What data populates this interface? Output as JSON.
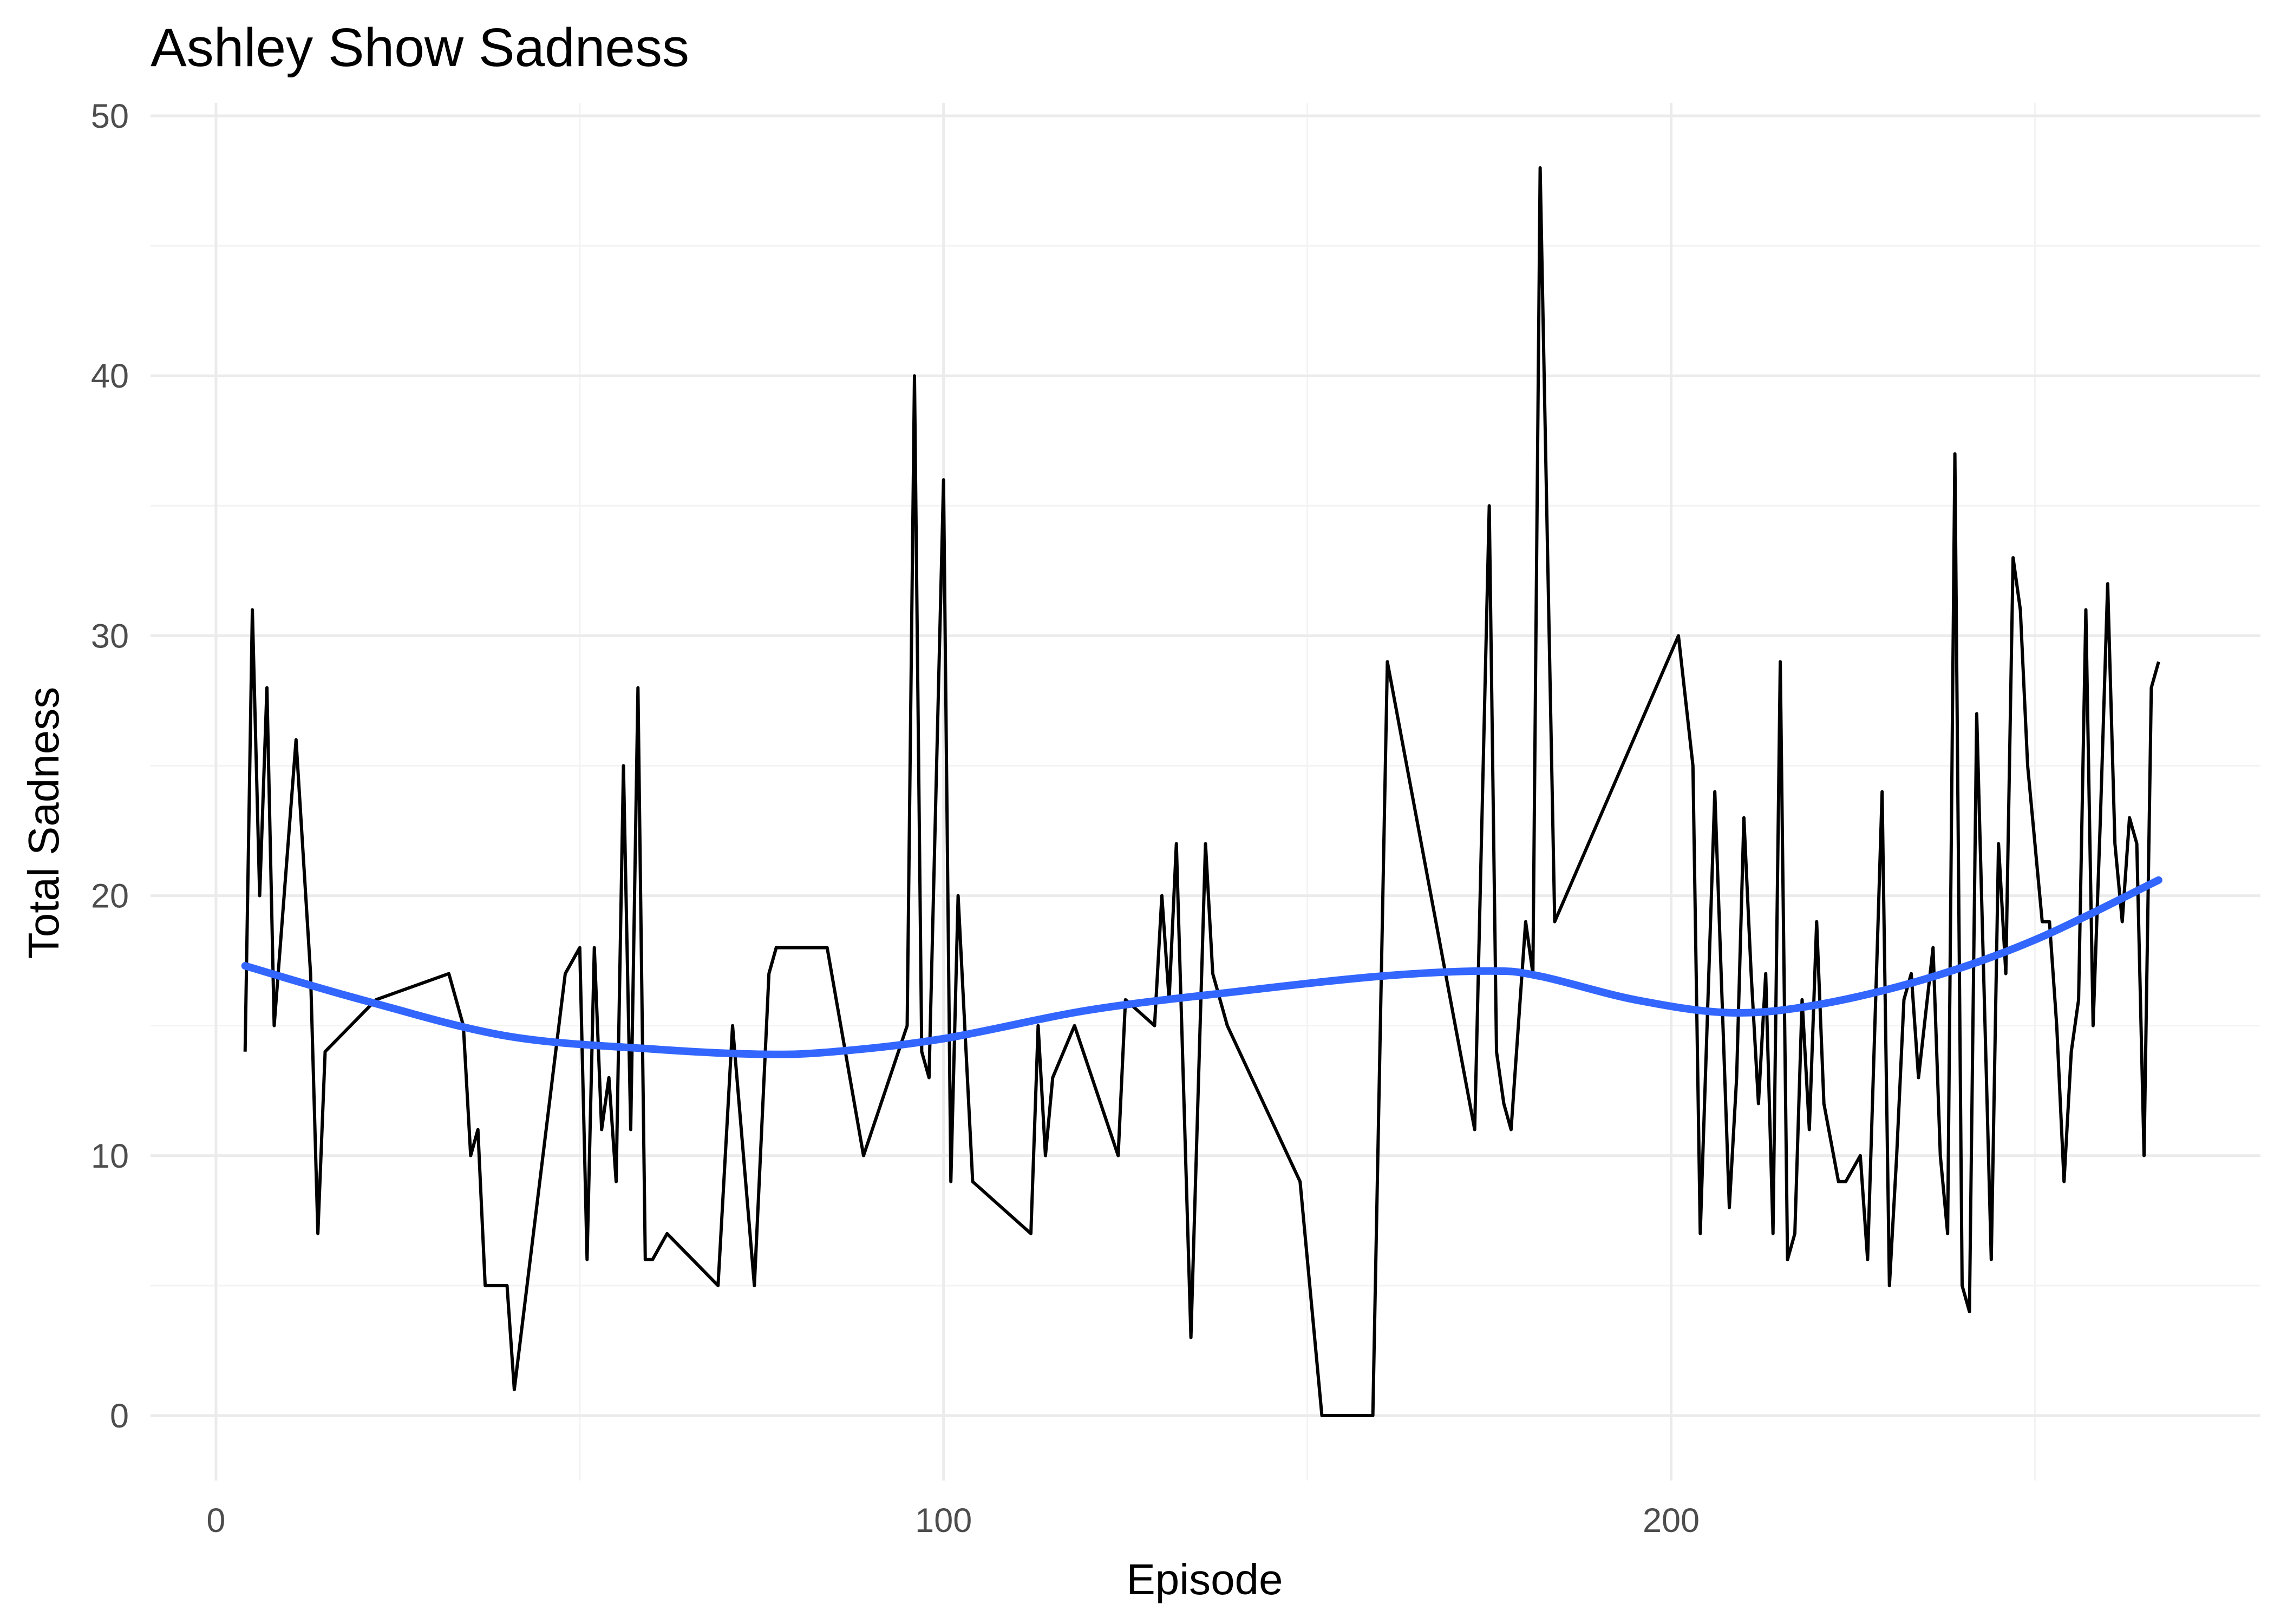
{
  "chart_data": {
    "type": "line",
    "title": "Ashley Show Sadness",
    "xlabel": "Episode",
    "ylabel": "Total Sadness",
    "xlim": [
      -9,
      281
    ],
    "ylim": [
      -2.5,
      50.5
    ],
    "x_ticks": [
      0,
      100,
      200
    ],
    "x_tick_labels": [
      "0",
      "100",
      "200"
    ],
    "x_minor_ticks": [
      50,
      150,
      250
    ],
    "y_ticks": [
      0,
      10,
      20,
      30,
      40,
      50
    ],
    "y_tick_labels": [
      "0",
      "10",
      "20",
      "30",
      "40",
      "50"
    ],
    "y_minor_ticks": [
      5,
      15,
      25,
      35,
      45
    ],
    "grid": true,
    "legend": "none",
    "series": [
      {
        "color": "#000000",
        "x": [
          4,
          5,
          6,
          7,
          8,
          11,
          13,
          14,
          15,
          22,
          32,
          34,
          35,
          36,
          37,
          40,
          41,
          48,
          50,
          51,
          52,
          53,
          54,
          55,
          56,
          57,
          58,
          59,
          60,
          62,
          69,
          71,
          74,
          76,
          77,
          84,
          89,
          95,
          96,
          97,
          98,
          100,
          101,
          102,
          104,
          112,
          113,
          114,
          115,
          118,
          124,
          125,
          129,
          130,
          131,
          132,
          134,
          136,
          137,
          139,
          149,
          152,
          159,
          161,
          173,
          175,
          176,
          177,
          178,
          180,
          181,
          182,
          184,
          201,
          203,
          204,
          206,
          208,
          209,
          210,
          211,
          212,
          213,
          214,
          215,
          216,
          217,
          218,
          219,
          220,
          221,
          223,
          224,
          226,
          227,
          229,
          230,
          231,
          232,
          233,
          234,
          236,
          237,
          238,
          239,
          240,
          241,
          242,
          244,
          245,
          246,
          247,
          248,
          249,
          251,
          252,
          253,
          254,
          255,
          256,
          257,
          258,
          259,
          260,
          261,
          262,
          263,
          264,
          265,
          266,
          267
        ],
        "values": [
          14,
          31,
          20,
          28,
          15,
          26,
          17,
          7,
          14,
          16,
          17,
          15,
          10,
          11,
          5,
          5,
          1,
          17,
          18,
          6,
          18,
          11,
          13,
          9,
          25,
          11,
          28,
          6,
          6,
          7,
          5,
          15,
          5,
          17,
          18,
          18,
          10,
          15,
          40,
          14,
          13,
          36,
          9,
          20,
          9,
          7,
          15,
          10,
          13,
          15,
          10,
          16,
          15,
          20,
          16,
          22,
          3,
          22,
          17,
          15,
          9,
          0,
          0,
          29,
          11,
          35,
          14,
          12,
          11,
          19,
          17,
          48,
          19,
          30,
          25,
          7,
          24,
          8,
          13,
          23,
          17,
          12,
          17,
          7,
          29,
          6,
          7,
          16,
          11,
          19,
          12,
          9,
          9,
          10,
          6,
          24,
          5,
          10,
          16,
          17,
          13,
          18,
          10,
          7,
          37,
          5,
          4,
          27,
          6,
          22,
          17,
          33,
          31,
          25,
          19,
          19,
          15,
          9,
          14,
          16,
          31,
          15,
          23,
          32,
          22,
          19,
          23,
          22,
          10,
          28,
          29
        ]
      },
      {
        "color": "#3366ff",
        "x": [
          4,
          20,
          40,
          60,
          75,
          85,
          100,
          120,
          140,
          160,
          175,
          182,
          195,
          208,
          220,
          235,
          250,
          267
        ],
        "values": [
          17.3,
          16.0,
          14.6,
          14.1,
          13.9,
          14.0,
          14.5,
          15.6,
          16.3,
          16.9,
          17.1,
          16.9,
          16.0,
          15.5,
          15.8,
          16.8,
          18.3,
          20.6
        ]
      }
    ]
  }
}
